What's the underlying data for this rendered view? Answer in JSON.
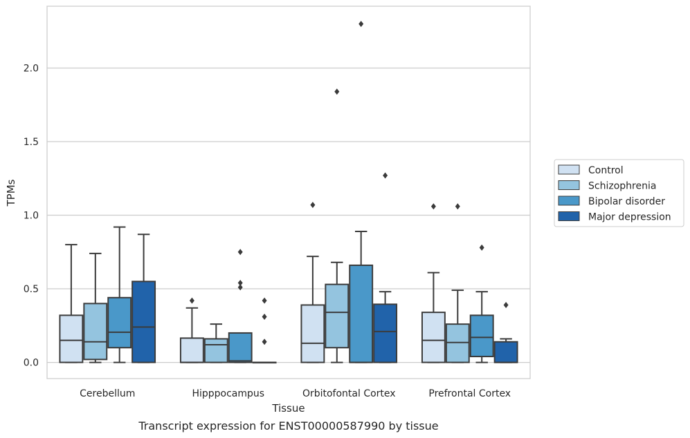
{
  "chart_data": {
    "type": "box",
    "xlabel": "Tissue",
    "ylabel": "TPMs",
    "caption": "Transcript expression for ENST00000587990 by tissue",
    "ylim": [
      -0.11,
      2.42
    ],
    "yticks": [
      0.0,
      0.5,
      1.0,
      1.5,
      2.0
    ],
    "ytick_labels": [
      "0.0",
      "0.5",
      "1.0",
      "1.5",
      "2.0"
    ],
    "grid": "horizontal",
    "legend_position": "right",
    "categories": [
      "Cerebellum",
      "Hipppocampus",
      "Orbitofontal Cortex",
      "Prefrontal Cortex"
    ],
    "series": [
      {
        "name": "Control",
        "color": "#d0e1f2",
        "boxes": [
          {
            "whislo": 0.0,
            "q1": 0.0,
            "med": 0.15,
            "q3": 0.32,
            "whishi": 0.8,
            "fliers": []
          },
          {
            "whislo": 0.0,
            "q1": 0.0,
            "med": 0.0,
            "q3": 0.165,
            "whishi": 0.37,
            "fliers": [
              0.42
            ]
          },
          {
            "whislo": 0.0,
            "q1": 0.0,
            "med": 0.13,
            "q3": 0.39,
            "whishi": 0.72,
            "fliers": [
              1.07
            ]
          },
          {
            "whislo": 0.0,
            "q1": 0.0,
            "med": 0.15,
            "q3": 0.34,
            "whishi": 0.61,
            "fliers": [
              1.06
            ]
          }
        ]
      },
      {
        "name": "Schizophrenia",
        "color": "#94c4df",
        "boxes": [
          {
            "whislo": 0.0,
            "q1": 0.02,
            "med": 0.14,
            "q3": 0.4,
            "whishi": 0.74,
            "fliers": []
          },
          {
            "whislo": 0.0,
            "q1": 0.0,
            "med": 0.12,
            "q3": 0.16,
            "whishi": 0.26,
            "fliers": []
          },
          {
            "whislo": 0.0,
            "q1": 0.1,
            "med": 0.34,
            "q3": 0.53,
            "whishi": 0.68,
            "fliers": [
              1.84
            ]
          },
          {
            "whislo": 0.0,
            "q1": 0.0,
            "med": 0.135,
            "q3": 0.26,
            "whishi": 0.49,
            "fliers": [
              1.06
            ]
          }
        ]
      },
      {
        "name": "Bipolar disorder",
        "color": "#4a98c9",
        "boxes": [
          {
            "whislo": 0.0,
            "q1": 0.1,
            "med": 0.205,
            "q3": 0.44,
            "whishi": 0.92,
            "fliers": []
          },
          {
            "whislo": 0.0,
            "q1": 0.0,
            "med": 0.01,
            "q3": 0.2,
            "whishi": 0.2,
            "fliers": [
              0.51,
              0.54,
              0.75
            ]
          },
          {
            "whislo": 0.0,
            "q1": 0.0,
            "med": 0.0,
            "q3": 0.66,
            "whishi": 0.89,
            "fliers": [
              2.3
            ]
          },
          {
            "whislo": 0.0,
            "q1": 0.04,
            "med": 0.17,
            "q3": 0.32,
            "whishi": 0.48,
            "fliers": [
              0.78
            ]
          }
        ]
      },
      {
        "name": "Major depression",
        "color": "#2163aa",
        "boxes": [
          {
            "whislo": 0.0,
            "q1": 0.0,
            "med": 0.24,
            "q3": 0.55,
            "whishi": 0.87,
            "fliers": []
          },
          {
            "whislo": 0.0,
            "q1": 0.0,
            "med": 0.0,
            "q3": 0.0,
            "whishi": 0.0,
            "fliers": [
              0.14,
              0.31,
              0.42
            ]
          },
          {
            "whislo": 0.0,
            "q1": 0.0,
            "med": 0.21,
            "q3": 0.395,
            "whishi": 0.48,
            "fliers": [
              1.27
            ]
          },
          {
            "whislo": 0.0,
            "q1": 0.0,
            "med": 0.0,
            "q3": 0.14,
            "whishi": 0.16,
            "fliers": [
              0.39
            ]
          }
        ]
      }
    ]
  }
}
